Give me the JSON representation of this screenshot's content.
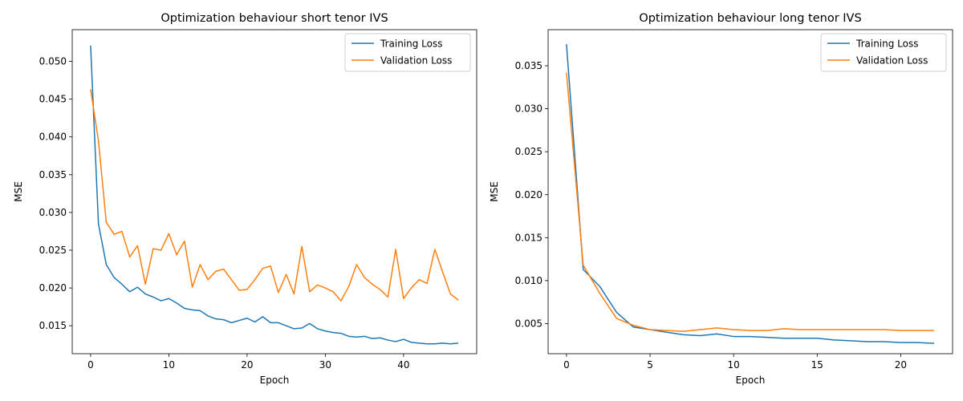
{
  "chart_data": [
    {
      "type": "line",
      "title": "Optimization behaviour short tenor IVS",
      "xlabel": "Epoch",
      "ylabel": "MSE",
      "xlim": [
        -2.35,
        49.35
      ],
      "ylim": [
        0.0113,
        0.0542
      ],
      "xticks": [
        0,
        10,
        20,
        30,
        40
      ],
      "yticks": [
        0.015,
        0.02,
        0.025,
        0.03,
        0.035,
        0.04,
        0.045,
        0.05
      ],
      "ytick_labels": [
        "0.015",
        "0.020",
        "0.025",
        "0.030",
        "0.035",
        "0.040",
        "0.045",
        "0.050"
      ],
      "grid": false,
      "legend": "top-right",
      "series": [
        {
          "name": "Training Loss",
          "color": "#1f77b4",
          "x": [
            0,
            1,
            2,
            3,
            4,
            5,
            6,
            7,
            8,
            9,
            10,
            11,
            12,
            13,
            14,
            15,
            16,
            17,
            18,
            19,
            20,
            21,
            22,
            23,
            24,
            25,
            26,
            27,
            28,
            29,
            30,
            31,
            32,
            33,
            34,
            35,
            36,
            37,
            38,
            39,
            40,
            41,
            42,
            43,
            44,
            45,
            46,
            47
          ],
          "values": [
            0.0521,
            0.0285,
            0.0231,
            0.0214,
            0.0205,
            0.0195,
            0.0201,
            0.0192,
            0.0188,
            0.0183,
            0.0186,
            0.018,
            0.0173,
            0.0171,
            0.017,
            0.0163,
            0.0159,
            0.0158,
            0.0154,
            0.0157,
            0.016,
            0.0155,
            0.0162,
            0.0154,
            0.0154,
            0.015,
            0.0146,
            0.0147,
            0.0153,
            0.0146,
            0.0143,
            0.0141,
            0.014,
            0.0136,
            0.0135,
            0.0136,
            0.0133,
            0.0134,
            0.0131,
            0.0129,
            0.0132,
            0.0128,
            0.0127,
            0.0126,
            0.0126,
            0.0127,
            0.0126,
            0.0127
          ]
        },
        {
          "name": "Validation Loss",
          "color": "#ff7f0e",
          "x": [
            0,
            1,
            2,
            3,
            4,
            5,
            6,
            7,
            8,
            9,
            10,
            11,
            12,
            13,
            14,
            15,
            16,
            17,
            18,
            19,
            20,
            21,
            22,
            23,
            24,
            25,
            26,
            27,
            28,
            29,
            30,
            31,
            32,
            33,
            34,
            35,
            36,
            37,
            38,
            39,
            40,
            41,
            42,
            43,
            44,
            45,
            46,
            47
          ],
          "values": [
            0.0463,
            0.0395,
            0.0287,
            0.0271,
            0.0275,
            0.0241,
            0.0256,
            0.0205,
            0.0252,
            0.025,
            0.0272,
            0.0244,
            0.0262,
            0.0201,
            0.0231,
            0.0211,
            0.0222,
            0.0225,
            0.0211,
            0.0197,
            0.0198,
            0.0211,
            0.0226,
            0.0229,
            0.0194,
            0.0218,
            0.0192,
            0.0255,
            0.0195,
            0.0204,
            0.02,
            0.0195,
            0.0183,
            0.0202,
            0.0231,
            0.0214,
            0.0205,
            0.0198,
            0.0188,
            0.0251,
            0.0186,
            0.02,
            0.0211,
            0.0206,
            0.0251,
            0.0221,
            0.0192,
            0.0184
          ]
        }
      ]
    },
    {
      "type": "line",
      "title": "Optimization behaviour long tenor IVS",
      "xlabel": "Epoch",
      "ylabel": "MSE",
      "xlim": [
        -1.1,
        23.1
      ],
      "ylim": [
        0.0015,
        0.0392
      ],
      "xticks": [
        0,
        5,
        10,
        15,
        20
      ],
      "yticks": [
        0.005,
        0.01,
        0.015,
        0.02,
        0.025,
        0.03,
        0.035
      ],
      "ytick_labels": [
        "0.005",
        "0.010",
        "0.015",
        "0.020",
        "0.025",
        "0.030",
        "0.035"
      ],
      "grid": false,
      "legend": "top-right",
      "series": [
        {
          "name": "Training Loss",
          "color": "#1f77b4",
          "x": [
            0,
            1,
            2,
            3,
            4,
            5,
            6,
            7,
            8,
            9,
            10,
            11,
            12,
            13,
            14,
            15,
            16,
            17,
            18,
            19,
            20,
            21,
            22
          ],
          "values": [
            0.0375,
            0.0113,
            0.0093,
            0.0063,
            0.0046,
            0.0043,
            0.004,
            0.0037,
            0.0036,
            0.0038,
            0.0035,
            0.0035,
            0.0034,
            0.0033,
            0.0033,
            0.0033,
            0.0031,
            0.003,
            0.0029,
            0.0029,
            0.0028,
            0.0028,
            0.0027
          ]
        },
        {
          "name": "Validation Loss",
          "color": "#ff7f0e",
          "x": [
            0,
            1,
            2,
            3,
            4,
            5,
            6,
            7,
            8,
            9,
            10,
            11,
            12,
            13,
            14,
            15,
            16,
            17,
            18,
            19,
            20,
            21,
            22
          ],
          "values": [
            0.0342,
            0.0118,
            0.0085,
            0.0056,
            0.0048,
            0.0043,
            0.0042,
            0.0041,
            0.0043,
            0.0045,
            0.0043,
            0.0042,
            0.0042,
            0.0044,
            0.0043,
            0.0043,
            0.0043,
            0.0043,
            0.0043,
            0.0043,
            0.0042,
            0.0042,
            0.0042
          ]
        }
      ]
    }
  ]
}
